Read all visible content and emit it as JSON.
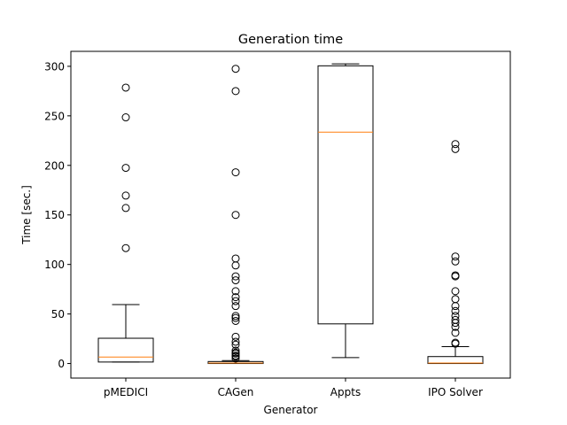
{
  "chart_data": {
    "type": "box",
    "title": "Generation time",
    "xlabel": "Generator",
    "ylabel": "Time [sec.]",
    "ylim": [
      -14.7,
      315.1
    ],
    "yticks": [
      0,
      50,
      100,
      150,
      200,
      250,
      300
    ],
    "grid": false,
    "colors": {
      "box": "#000000",
      "median": "#ff7f0e",
      "background": "#ffffff"
    },
    "categories": [
      "pMEDICI",
      "CAGen",
      "Appts",
      "IPO Solver"
    ],
    "boxes": [
      {
        "name": "pMEDICI",
        "whisker_low": 1.5,
        "q1": 1.5,
        "median": 6.5,
        "q3": 25.5,
        "whisker_high": 59.5,
        "fliers": [
          116.5,
          157,
          169.5,
          197.5,
          248.5,
          278.5
        ]
      },
      {
        "name": "CAGen",
        "whisker_low": 0,
        "q1": 0,
        "median": 0.5,
        "q3": 2,
        "whisker_high": 3,
        "fliers": [
          5,
          7,
          8,
          10,
          11,
          13,
          19,
          22,
          27,
          43,
          46,
          48,
          58,
          63,
          67,
          73,
          84,
          88,
          99,
          106,
          150,
          193,
          275,
          297.5
        ]
      },
      {
        "name": "Appts",
        "whisker_low": 6,
        "q1": 40,
        "median": 233.5,
        "q3": 300.5,
        "whisker_high": 302.5,
        "fliers": []
      },
      {
        "name": "IPO Solver",
        "whisker_low": 0,
        "q1": 0,
        "median": 0.5,
        "q3": 7,
        "whisker_high": 17,
        "fliers": [
          20,
          21,
          31,
          37,
          41,
          44,
          48,
          53,
          58,
          65,
          73,
          88,
          89,
          103,
          108,
          216.5,
          221.5
        ]
      }
    ]
  }
}
